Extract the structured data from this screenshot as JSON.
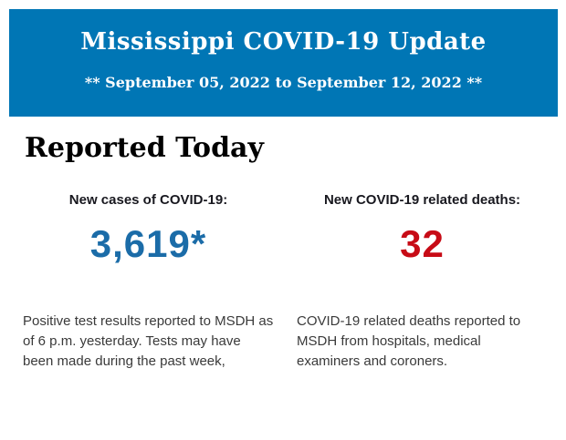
{
  "header": {
    "title": "Mississippi COVID-19 Update",
    "date_range": "** September 05, 2022 to September 12, 2022 **",
    "background_color": "#0076b5",
    "text_color": "#ffffff"
  },
  "main": {
    "section_title": "Reported Today",
    "stats": [
      {
        "label": "New cases of COVID-19:",
        "value": "3,619*",
        "value_color": "#1b6ca8",
        "description": "Positive test results reported to MSDH as of 6 p.m. yesterday. Tests may have been made during the past week,"
      },
      {
        "label": "New COVID-19 related deaths:",
        "value": "32",
        "value_color": "#c70b16",
        "description": "COVID-19 related deaths reported to MSDH from hospitals, medical examiners and coroners."
      }
    ]
  }
}
